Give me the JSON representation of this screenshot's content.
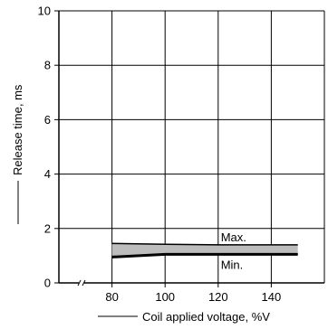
{
  "chart_data": {
    "type": "area",
    "title": "",
    "xlabel": "Coil applied voltage, %V",
    "ylabel": "Release time, ms",
    "xlim": [
      60,
      160
    ],
    "ylim": [
      0,
      10
    ],
    "x_ticks": [
      80,
      100,
      120,
      140
    ],
    "x_tick_labels": [
      "80",
      "100",
      "120",
      "140"
    ],
    "y_ticks": [
      0,
      2,
      4,
      6,
      8,
      10
    ],
    "y_tick_labels": [
      "0",
      "2",
      "4",
      "6",
      "8",
      "10"
    ],
    "x_axis_break": true,
    "grid": true,
    "band_fill_color": "#bdbdbd",
    "line_color": "#000000",
    "series": [
      {
        "name": "Max.",
        "x": [
          80,
          100,
          120,
          150
        ],
        "y": [
          1.45,
          1.42,
          1.4,
          1.4
        ]
      },
      {
        "name": "Min.",
        "x": [
          80,
          100,
          120,
          150
        ],
        "y": [
          0.95,
          1.05,
          1.05,
          1.05
        ]
      }
    ]
  }
}
